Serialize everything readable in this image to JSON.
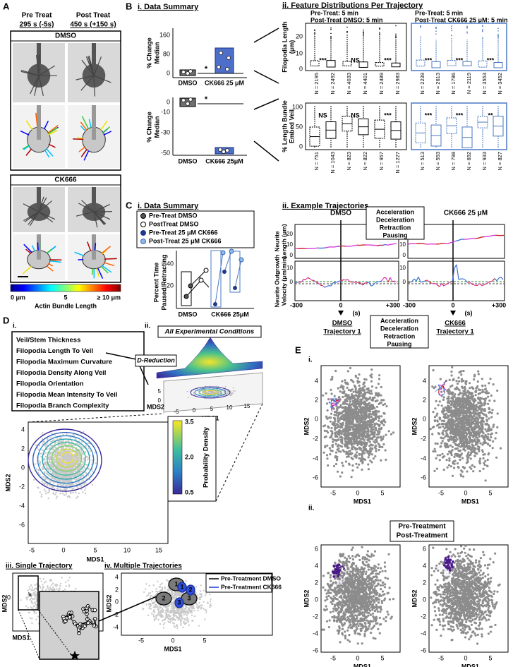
{
  "panel_a": {
    "letter": "A",
    "pre_treat": "Pre Treat",
    "post_treat": "Post Treat",
    "pre_time": "295 s (-5s)",
    "post_time": "450 s (+150 s)",
    "dmso": "DMSO",
    "ck666": "CK666",
    "colorbar": {
      "min": "0 μm",
      "mid": "5",
      "max": "≥ 10 μm",
      "label": "Actin Bundle Length"
    }
  },
  "panel_b": {
    "letter": "B",
    "i": {
      "title": "i. Data Summary",
      "chart1": {
        "ylabel": [
          "% Change",
          "Median"
        ],
        "yticks": [
          "160",
          "80",
          "0"
        ],
        "categories": [
          "DMSO",
          "CK666 25 μM"
        ],
        "significance": "*"
      },
      "chart2": {
        "ylabel": [
          "% Change",
          "Median"
        ],
        "yticks": [
          "0",
          "-10",
          "-30",
          "-50"
        ],
        "categories": [
          "DMSO",
          "CK666 25μM"
        ],
        "significance": "*"
      }
    },
    "ii": {
      "title": "ii. Feature Distributions Per Trajectory",
      "legend_dmso": [
        "Pre-Treat: 5 min",
        "Post-Treat DMSO: 5 min"
      ],
      "legend_ck666": [
        "Pre-Treat: 5 min",
        "Post-Treat CK666 25 μM: 5 min"
      ],
      "chart1": {
        "ylabel": [
          "Filopodia Length",
          "(μm)"
        ],
        "yticks": [
          "20",
          "10",
          "0"
        ],
        "n_labels": [
          "N = 2195",
          "N = 2492",
          "N = 4033",
          "N = 4401",
          "N = 2489",
          "N = 2983",
          "N = 2239",
          "N = 2613",
          "N = 1786",
          "N = 2119",
          "N = 3553",
          "N = 3452"
        ],
        "annotations": [
          "***",
          "NS",
          "***",
          "***",
          "***",
          "***"
        ]
      },
      "chart2": {
        "ylabel": [
          "% Length Bundle",
          "Embed Veil"
        ],
        "yticks": [
          "100",
          "50",
          "0"
        ],
        "n_labels": [
          "N = 751",
          "N = 1043",
          "N = 823",
          "N = 822",
          "N = 957",
          "N = 1227",
          "N = 513",
          "N = 553",
          "N = 798",
          "N = 692",
          "N = 933",
          "N = 827"
        ],
        "annotations": [
          "NS",
          "NS",
          "***",
          "***",
          "***",
          "**"
        ]
      }
    }
  },
  "panel_c": {
    "letter": "C",
    "i": {
      "title": "i. Data Summary",
      "legend": [
        "Pre-Treat DMSO",
        "PostTreat DMSO",
        "Pre-Treat 25 μM CK666",
        "Post-Treat 25 μM CK666"
      ],
      "ylabel": [
        "Percent Time",
        "Paused/Retracting"
      ],
      "yticks": [
        "40",
        "20"
      ],
      "categories": [
        "DMSO",
        "CK666 25μM"
      ]
    },
    "ii": {
      "title": "ii. Example Trajectories",
      "dmso": "DMSO",
      "ck666": "CK666 25 μM",
      "legend": [
        "Acceleration",
        "Deceleration",
        "Retraction",
        "Pausing"
      ],
      "length_ylabel": [
        "Neurite",
        "Length (μm)"
      ],
      "velocity_ylabel": [
        "Neurite Outgrowth",
        "Velocity (μm/min)"
      ],
      "length_yticks": [
        "20",
        "10",
        "0"
      ],
      "velocity_yticks": [
        "10",
        "0"
      ],
      "xticks": [
        "-300",
        "0",
        "+300"
      ],
      "xunit": "(s)"
    }
  },
  "panel_d": {
    "letter": "D",
    "i": {
      "label": "i.",
      "features": [
        "Veil/Stem Thickness",
        "Filopodia Length To Veil",
        "Filopodia Maximum Curvature",
        "Filopodia Density Along Veil",
        "Filopodia Orientation",
        "Filopodia Mean Intensity To Veil",
        "Filopodia Branch Complexity"
      ]
    },
    "ii": {
      "label": "ii.",
      "title": "All Experimental Conditions",
      "reduction": "D-Reduction",
      "xlabel": "MDS1",
      "ylabel": "MDS2",
      "xticks": [
        "-5",
        "0",
        "5",
        "10",
        "15"
      ],
      "yticks": [
        "5",
        "0"
      ]
    },
    "density_plot": {
      "xlabel": "MDS1",
      "ylabel": "MDS2",
      "xticks": [
        "-5",
        "0",
        "5",
        "10",
        "15"
      ],
      "yticks": [
        "4",
        "2",
        "0",
        "-2",
        "-4",
        "-6"
      ],
      "colorbar_label": "Probability Density",
      "colorbar_ticks": [
        "3.5",
        "2.0",
        "0.5"
      ]
    },
    "iii": {
      "title": "iii. Single Trajectory",
      "xlabel": "MDS1",
      "ylabel": "MDS2",
      "yticks": [
        "0"
      ]
    },
    "iv": {
      "title": "iv. Multiple Trajectories",
      "legend": [
        "Pre-Treatment DMSO",
        "Pre-Treatment CK666"
      ],
      "xlabel": "MDS1",
      "ylabel": "MDS2",
      "xticks": [
        "-5",
        "0",
        "5"
      ],
      "yticks": [
        "4",
        "2",
        "0",
        "-2",
        "-4"
      ],
      "dmso_regions": [
        "1",
        "2",
        "3"
      ],
      "ck666_regions": [
        "1",
        "2",
        "3"
      ]
    }
  },
  "panel_e": {
    "letter": "E",
    "i": {
      "label": "i.",
      "dmso_title": [
        "DMSO",
        "Trajectory 1"
      ],
      "ck666_title": [
        "CK666",
        "Trajectory 1"
      ],
      "legend": [
        "Acceleration",
        "Deceleration",
        "Retraction",
        "Pausing"
      ],
      "xlabel": "MDS1",
      "ylabel": "MDS2",
      "xticks": [
        "-5",
        "0",
        "5"
      ],
      "yticks": [
        "4",
        "2",
        "0",
        "-2",
        "-4",
        "-6"
      ]
    },
    "ii": {
      "label": "ii.",
      "legend": [
        "Pre-Treatment",
        "Post-Treatment"
      ],
      "xlabel": "MDS1",
      "ylabel": "MDS2",
      "xticks": [
        "-5",
        "0",
        "5"
      ],
      "yticks": [
        "6",
        "4",
        "2",
        "0",
        "-2",
        "-4",
        "-6"
      ]
    }
  }
}
